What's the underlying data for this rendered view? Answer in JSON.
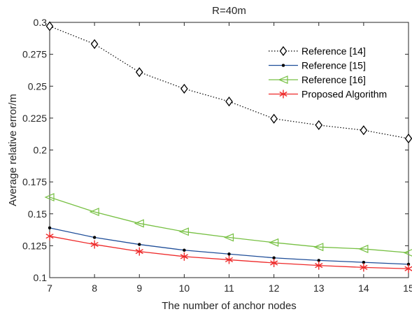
{
  "chart_data": {
    "type": "line",
    "title": "R=40m",
    "xlabel": "The number of anchor nodes",
    "ylabel": "Average relative error/m",
    "x": [
      7,
      8,
      9,
      10,
      11,
      12,
      13,
      14,
      15
    ],
    "xlim": [
      7,
      15
    ],
    "ylim": [
      0.1,
      0.3
    ],
    "xticks": [
      "7",
      "8",
      "9",
      "10",
      "11",
      "12",
      "13",
      "14",
      "15"
    ],
    "yticks": [
      "0.1",
      "0.125",
      "0.15",
      "0.175",
      "0.2",
      "0.225",
      "0.25",
      "0.275",
      "0.3"
    ],
    "grid": false,
    "legend_position": "top-right",
    "series": [
      {
        "name": "Reference [14]",
        "color": "#000000",
        "line_style": "dotted",
        "marker": "diamond",
        "values": [
          0.297,
          0.283,
          0.261,
          0.248,
          0.238,
          0.2245,
          0.2195,
          0.2155,
          0.209
        ]
      },
      {
        "name": "Reference [15]",
        "color": "#1f4e99",
        "line_style": "solid",
        "marker": "dot",
        "values": [
          0.139,
          0.1315,
          0.126,
          0.1215,
          0.1185,
          0.1155,
          0.1135,
          0.112,
          0.1105
        ]
      },
      {
        "name": "Reference [16]",
        "color": "#77c043",
        "line_style": "solid",
        "marker": "triangle-left",
        "values": [
          0.163,
          0.1515,
          0.1425,
          0.136,
          0.1315,
          0.1275,
          0.124,
          0.1225,
          0.1195
        ]
      },
      {
        "name": "Proposed Algorithm",
        "color": "#ee2a2a",
        "line_style": "solid",
        "marker": "asterisk",
        "values": [
          0.1325,
          0.126,
          0.1205,
          0.1165,
          0.114,
          0.1115,
          0.1095,
          0.108,
          0.107
        ]
      }
    ]
  }
}
